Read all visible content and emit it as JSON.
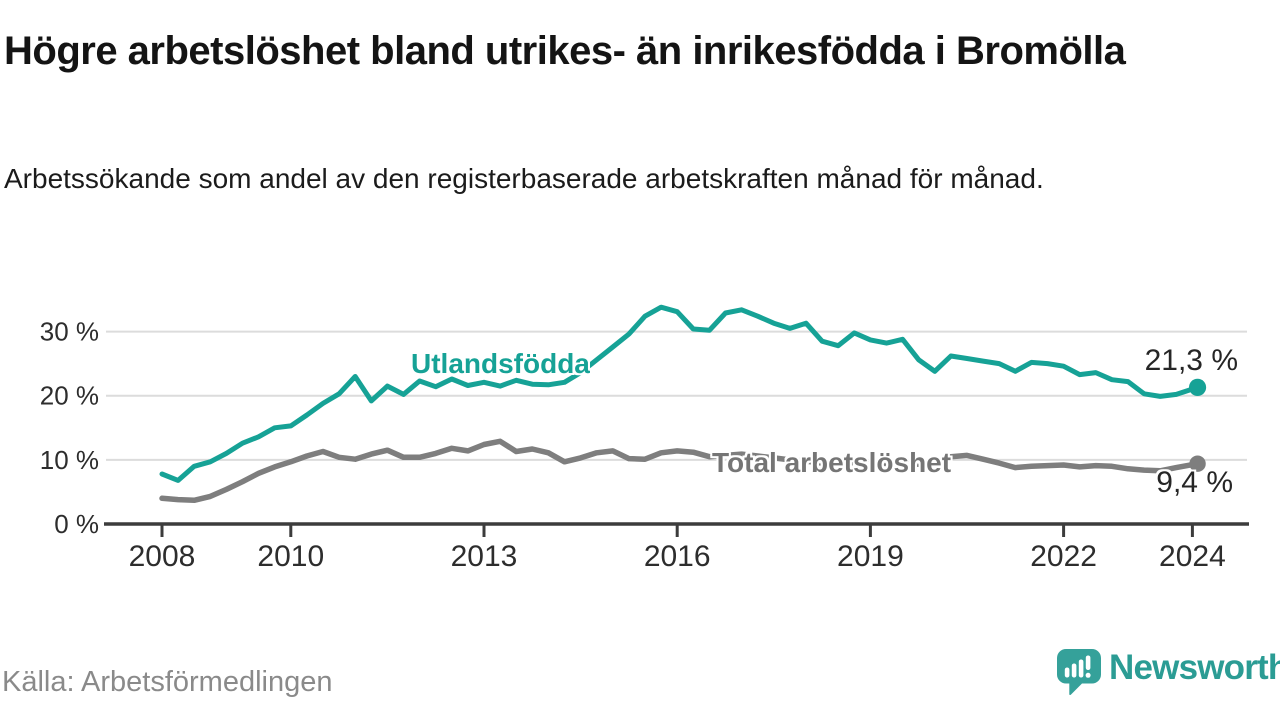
{
  "header": {
    "title": "Högre arbetslöshet bland utrikes- än inrikesfödda i Bromölla",
    "subtitle": "Arbetssökande som andel av den registerbaserade arbetskraften månad för månad."
  },
  "footer": {
    "source": "Källa: Arbetsförmedlingen",
    "brand": "Newsworthy",
    "brand_icon": "newsworthy-chart-bubble-icon"
  },
  "colors": {
    "foreign_line": "#16a296",
    "total_line": "#7e7e7e",
    "grid": "#dcdcdc",
    "axis": "#3c3c3c",
    "tick_text": "#2d2d2d",
    "brand_teal": "#2b9c94"
  },
  "chart_data": {
    "type": "line",
    "title": "Högre arbetslöshet bland utrikes- än inrikesfödda i Bromölla",
    "xlabel": "",
    "ylabel": "",
    "xlim": [
      2008,
      2024.3
    ],
    "ylim": [
      0,
      35
    ],
    "grid": "horizontal",
    "legend_position": "inline-labels",
    "xticks": [
      2008,
      2010,
      2013,
      2016,
      2019,
      2022,
      2024
    ],
    "yticks": [
      0,
      10,
      20,
      30
    ],
    "ytick_labels": [
      "0 %",
      "10 %",
      "20 %",
      "30 %"
    ],
    "x": [
      2008.0,
      2008.25,
      2008.5,
      2008.75,
      2009.0,
      2009.25,
      2009.5,
      2009.75,
      2010.0,
      2010.25,
      2010.5,
      2010.75,
      2011.0,
      2011.25,
      2011.5,
      2011.75,
      2012.0,
      2012.25,
      2012.5,
      2012.75,
      2013.0,
      2013.25,
      2013.5,
      2013.75,
      2014.0,
      2014.25,
      2014.5,
      2014.75,
      2015.0,
      2015.25,
      2015.5,
      2015.75,
      2016.0,
      2016.25,
      2016.5,
      2016.75,
      2017.0,
      2017.25,
      2017.5,
      2017.75,
      2018.0,
      2018.25,
      2018.5,
      2018.75,
      2019.0,
      2019.25,
      2019.5,
      2019.75,
      2020.0,
      2020.25,
      2020.5,
      2020.75,
      2021.0,
      2021.25,
      2021.5,
      2021.75,
      2022.0,
      2022.25,
      2022.5,
      2022.75,
      2023.0,
      2023.25,
      2023.5,
      2023.75,
      2024.08
    ],
    "series": [
      {
        "name": "Utlandsfödda",
        "color": "#16a296",
        "end_value": 21.3,
        "end_label": "21,3 %",
        "values": [
          7.8,
          6.8,
          9.0,
          9.7,
          11.0,
          12.6,
          13.6,
          15.0,
          15.3,
          17.0,
          18.8,
          20.3,
          23.0,
          19.2,
          21.5,
          20.2,
          22.3,
          21.4,
          22.6,
          21.6,
          22.1,
          21.5,
          22.4,
          21.8,
          21.7,
          22.1,
          23.6,
          25.6,
          27.6,
          29.6,
          32.4,
          33.8,
          33.1,
          30.4,
          30.2,
          32.9,
          33.4,
          32.4,
          31.3,
          30.5,
          31.3,
          28.5,
          27.8,
          29.8,
          28.7,
          28.2,
          28.8,
          25.6,
          23.8,
          26.2,
          25.8,
          25.4,
          25.0,
          23.8,
          25.2,
          25.0,
          24.6,
          23.3,
          23.6,
          22.5,
          22.2,
          20.3,
          19.9,
          20.2,
          21.3
        ]
      },
      {
        "name": "Total arbetslöshet",
        "color": "#7e7e7e",
        "end_value": 9.4,
        "end_label": "9,4 %",
        "values": [
          4.0,
          3.8,
          3.7,
          4.3,
          5.4,
          6.6,
          7.9,
          8.9,
          9.7,
          10.6,
          11.3,
          10.4,
          10.1,
          10.9,
          11.5,
          10.4,
          10.4,
          11.0,
          11.8,
          11.4,
          12.4,
          12.9,
          11.3,
          11.7,
          11.1,
          9.7,
          10.3,
          11.1,
          11.4,
          10.2,
          10.1,
          11.1,
          11.4,
          11.2,
          10.5,
          10.7,
          10.9,
          10.6,
          10.3,
          10.0,
          9.8,
          9.5,
          9.3,
          9.6,
          9.7,
          9.4,
          9.6,
          9.3,
          9.6,
          10.5,
          10.7,
          10.1,
          9.5,
          8.8,
          9.0,
          9.1,
          9.2,
          8.9,
          9.1,
          9.0,
          8.6,
          8.4,
          8.3,
          8.8,
          9.4
        ]
      }
    ]
  }
}
